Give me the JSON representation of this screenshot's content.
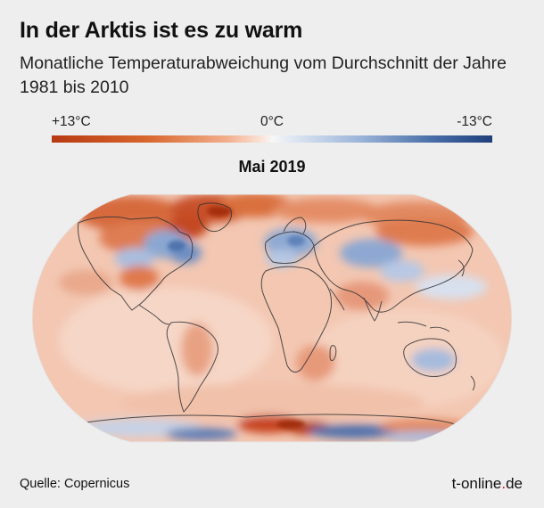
{
  "header": {
    "title": "In der Arktis ist es zu warm",
    "subtitle": "Monatliche Temperaturabweichung vom Durchschnitt der Jahre 1981 bis 2010"
  },
  "legend": {
    "left_label": "+13°C",
    "middle_label": "0°C",
    "right_label": "-13°C",
    "warm_color": "#b73a12",
    "neutral_color": "#f7f7f7",
    "cold_color": "#1f3f7a"
  },
  "map": {
    "period": "Mai 2019",
    "projection": "robinson-style world map",
    "ocean_base_color": "#f3c7b2"
  },
  "footer": {
    "source": "Quelle: Copernicus",
    "brand_main": "t-online",
    "brand_dot": ".",
    "brand_tld": "de"
  }
}
